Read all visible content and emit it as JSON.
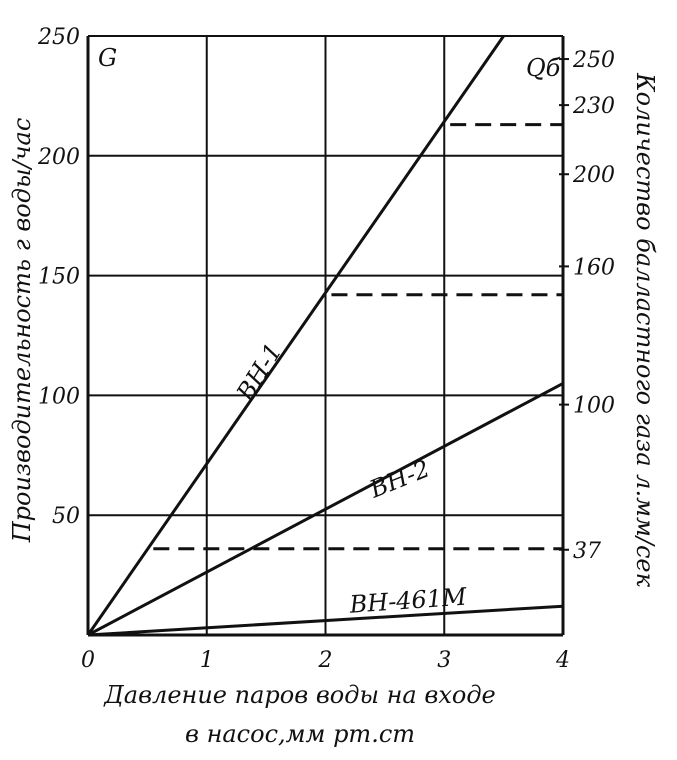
{
  "chart_data": {
    "type": "line",
    "x_axis": {
      "label_line1": "Давление паров воды на входе",
      "label_line2": "в насос,мм рт.ст",
      "range": [
        0,
        4
      ],
      "ticks": [
        0,
        1,
        2,
        3,
        4
      ],
      "tick_labels": [
        "0",
        "1",
        "2",
        "3",
        "4"
      ]
    },
    "y_axis_left": {
      "symbol": "G",
      "label": "Производительность г воды/час",
      "range": [
        0,
        250
      ],
      "ticks": [
        50,
        100,
        150,
        200,
        250
      ],
      "tick_labels": [
        "50",
        "100",
        "150",
        "200",
        "250"
      ]
    },
    "y_axis_right": {
      "symbol": "Qб",
      "label": "Количество балластного газа л.мм/сек",
      "range": [
        0,
        260
      ],
      "ticks": [
        37,
        100,
        160,
        200,
        230,
        250
      ],
      "tick_labels": [
        "37",
        "100",
        "160",
        "200",
        "230",
        "250"
      ]
    },
    "grid": true,
    "series": [
      {
        "name": "ВН-1",
        "points": [
          [
            0,
            0
          ],
          [
            3.5,
            250
          ]
        ]
      },
      {
        "name": "ВН-2",
        "points": [
          [
            0,
            0
          ],
          [
            4,
            105
          ]
        ]
      },
      {
        "name": "ВН-461М",
        "points": [
          [
            0,
            0
          ],
          [
            4,
            12
          ]
        ]
      }
    ],
    "reference_lines": [
      {
        "y_left": 213,
        "x_from": 3.05,
        "x_to": 4,
        "right_value": 230
      },
      {
        "y_left": 142,
        "x_from": 2.05,
        "x_to": 4,
        "right_value": 160
      },
      {
        "y_left": 36,
        "x_from": 0.55,
        "x_to": 4,
        "right_value": 37
      }
    ]
  }
}
